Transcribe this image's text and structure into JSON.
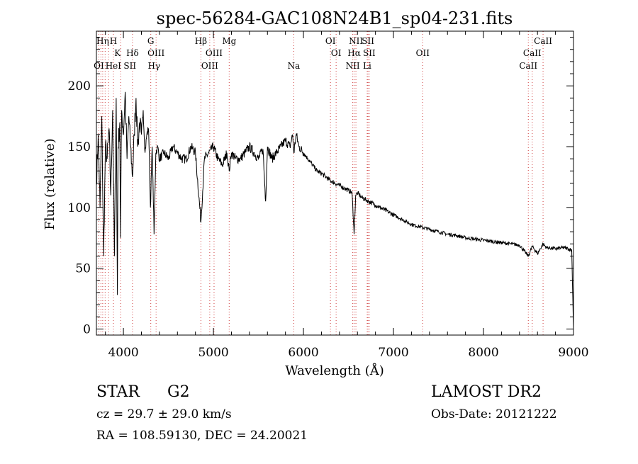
{
  "chart_data": {
    "type": "line",
    "title": "spec-56284-GAC108N24B1_sp04-231.fits",
    "xlabel": "Wavelength (Å)",
    "ylabel": "Flux (relative)",
    "xlim": [
      3700,
      9000
    ],
    "ylim": [
      -5,
      245
    ],
    "x_ticks": [
      4000,
      5000,
      6000,
      7000,
      8000,
      9000
    ],
    "y_ticks": [
      0,
      50,
      100,
      150,
      200
    ],
    "grid": false,
    "legend": "none",
    "line_color": "#000000",
    "marker_color": "#d04040",
    "spectrum": {
      "x": [
        3700,
        3720,
        3740,
        3760,
        3780,
        3800,
        3820,
        3840,
        3860,
        3880,
        3900,
        3920,
        3933,
        3940,
        3960,
        3968,
        3980,
        4000,
        4020,
        4040,
        4060,
        4080,
        4101,
        4120,
        4140,
        4160,
        4180,
        4200,
        4220,
        4240,
        4260,
        4280,
        4300,
        4320,
        4340,
        4360,
        4380,
        4400,
        4450,
        4500,
        4550,
        4600,
        4650,
        4700,
        4750,
        4800,
        4861,
        4900,
        4950,
        5000,
        5050,
        5100,
        5150,
        5175,
        5200,
        5250,
        5300,
        5350,
        5400,
        5450,
        5500,
        5550,
        5580,
        5600,
        5650,
        5700,
        5750,
        5800,
        5850,
        5880,
        5893,
        5920,
        5950,
        6000,
        6050,
        6100,
        6150,
        6200,
        6250,
        6300,
        6350,
        6400,
        6450,
        6500,
        6540,
        6563,
        6580,
        6600,
        6650,
        6700,
        6750,
        6800,
        6850,
        6900,
        6950,
        7000,
        7050,
        7100,
        7150,
        7200,
        7300,
        7400,
        7500,
        7600,
        7700,
        7800,
        7900,
        8000,
        8100,
        8200,
        8300,
        8400,
        8498,
        8542,
        8600,
        8662,
        8700,
        8800,
        8900,
        8980,
        9000
      ],
      "y": [
        120,
        160,
        100,
        175,
        60,
        150,
        140,
        165,
        110,
        180,
        60,
        190,
        28,
        150,
        170,
        75,
        180,
        160,
        195,
        140,
        175,
        150,
        125,
        160,
        190,
        150,
        170,
        160,
        180,
        145,
        160,
        165,
        100,
        150,
        78,
        145,
        150,
        140,
        145,
        140,
        150,
        145,
        140,
        140,
        150,
        145,
        88,
        140,
        145,
        150,
        140,
        135,
        145,
        130,
        145,
        140,
        140,
        145,
        150,
        145,
        140,
        148,
        105,
        150,
        140,
        145,
        150,
        155,
        150,
        160,
        145,
        160,
        150,
        145,
        140,
        135,
        130,
        128,
        125,
        122,
        120,
        118,
        116,
        114,
        112,
        78,
        110,
        112,
        108,
        106,
        104,
        102,
        100,
        98,
        96,
        94,
        92,
        90,
        88,
        86,
        84,
        82,
        80,
        78,
        77,
        75,
        74,
        73,
        72,
        71,
        70,
        69,
        60,
        68,
        62,
        70,
        67,
        66,
        67,
        65,
        0
      ]
    },
    "lines_upper": {
      "x": [
        3727,
        3750,
        3770,
        3797,
        3835,
        3889,
        3970,
        4101,
        4304,
        4363,
        4861,
        4959,
        5007,
        5175,
        5893,
        6300,
        6363,
        6548,
        6563,
        6583,
        6717,
        6731,
        6708,
        7325,
        8498,
        8542,
        8662
      ],
      "row1": [
        {
          "x": 3770,
          "label": "Hη"
        },
        {
          "x": 3889,
          "label": "H"
        },
        {
          "x": 4304,
          "label": "G"
        },
        {
          "x": 4861,
          "label": "Hβ"
        },
        {
          "x": 5175,
          "label": "Mg"
        },
        {
          "x": 6300,
          "label": "OI"
        },
        {
          "x": 6583,
          "label": "NII"
        },
        {
          "x": 6717,
          "label": "SII"
        },
        {
          "x": 8662,
          "label": "CaII"
        }
      ],
      "row2": [
        {
          "x": 3934,
          "label": "K"
        },
        {
          "x": 4101,
          "label": "Hδ"
        },
        {
          "x": 4363,
          "label": "OIII"
        },
        {
          "x": 5007,
          "label": "OIII"
        },
        {
          "x": 6363,
          "label": "OI"
        },
        {
          "x": 6563,
          "label": "Hα"
        },
        {
          "x": 6731,
          "label": "SII"
        },
        {
          "x": 7325,
          "label": "OII"
        },
        {
          "x": 8542,
          "label": "CaII"
        }
      ],
      "row3": [
        {
          "x": 3727,
          "label": "OI"
        },
        {
          "x": 3888,
          "label": "HeI"
        },
        {
          "x": 4072,
          "label": "SII"
        },
        {
          "x": 4340,
          "label": "Hγ"
        },
        {
          "x": 4959,
          "label": "OIII"
        },
        {
          "x": 5893,
          "label": "Na"
        },
        {
          "x": 6548,
          "label": "NII"
        },
        {
          "x": 6708,
          "label": "Li"
        },
        {
          "x": 8498,
          "label": "CaII"
        }
      ]
    }
  },
  "footer": {
    "object_class": "STAR",
    "subclass": "G2",
    "survey": "LAMOST DR2",
    "redshift": "cz = 29.7 ± 29.0 km/s",
    "obs_date": "Obs-Date: 20121222",
    "coords": "RA = 108.59130, DEC =  24.20021"
  }
}
